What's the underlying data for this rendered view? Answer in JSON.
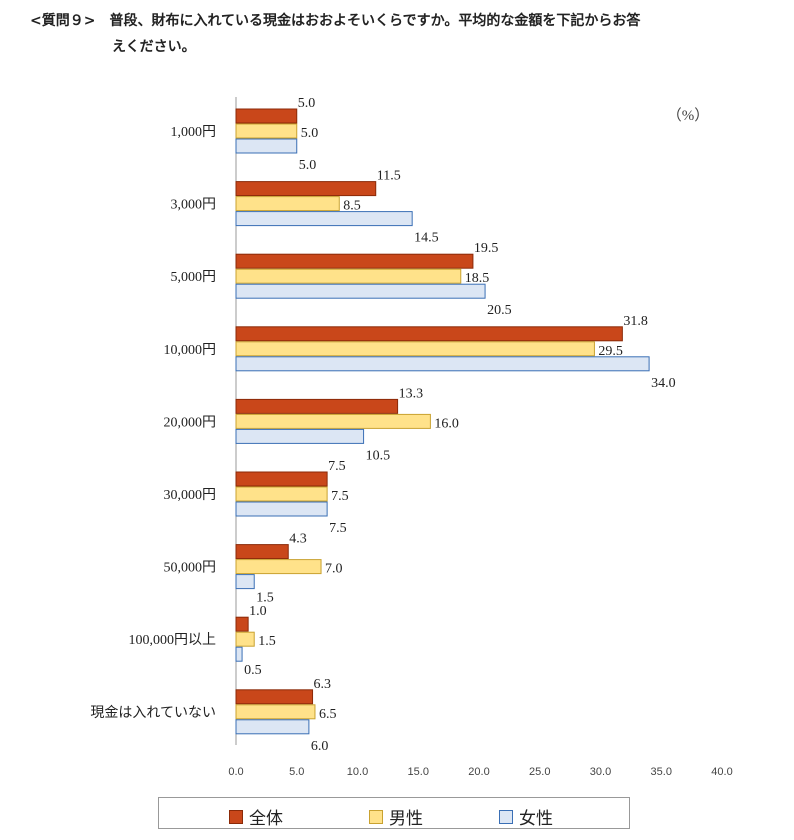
{
  "question": {
    "line1": "<質問９>　普段、財布に入れている現金はおおよそいくらですか。平均的な金額を下記からお答",
    "line2": "えください。"
  },
  "colors": {
    "all": "#C9471A",
    "male": "#FFE28A",
    "female": "#DCE6F4",
    "all_border": "#8B2A08",
    "male_border": "#C9A230",
    "female_border": "#3A6FB5"
  },
  "chart_data": {
    "type": "bar",
    "orientation": "horizontal",
    "unit_label": "（%）",
    "categories": [
      "1,000円",
      "3,000円",
      "5,000円",
      "10,000円",
      "20,000円",
      "30,000円",
      "50,000円",
      "100,000円以上",
      "現金は入れていない"
    ],
    "series": [
      {
        "name": "全体",
        "values": [
          5.0,
          11.5,
          19.5,
          31.8,
          13.3,
          7.5,
          4.3,
          1.0,
          6.3
        ]
      },
      {
        "name": "男性",
        "values": [
          5.0,
          8.5,
          18.5,
          29.5,
          16.0,
          7.5,
          7.0,
          1.5,
          6.5
        ]
      },
      {
        "name": "女性",
        "values": [
          5.0,
          14.5,
          20.5,
          34.0,
          10.5,
          7.5,
          1.5,
          0.5,
          6.0
        ]
      }
    ],
    "xlim": [
      0,
      40
    ],
    "xticks": [
      "0.0",
      "5.0",
      "10.0",
      "15.0",
      "20.0",
      "25.0",
      "30.0",
      "35.0",
      "40.0"
    ],
    "legend": "bottom",
    "grid": false
  }
}
